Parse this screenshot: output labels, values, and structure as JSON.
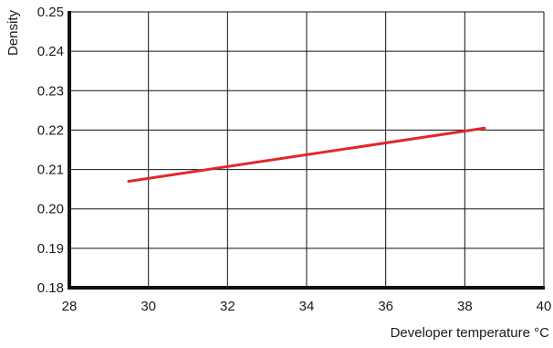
{
  "chart_data": {
    "type": "line",
    "title": "",
    "xlabel": "Developer temperature °C",
    "ylabel": "Density",
    "xlim": [
      28,
      40
    ],
    "ylim": [
      0.18,
      0.25
    ],
    "x_ticks": [
      28,
      30,
      32,
      34,
      36,
      38,
      40
    ],
    "x_tick_labels": [
      "28",
      "30",
      "32",
      "34",
      "36",
      "38",
      "40"
    ],
    "y_ticks": [
      0.18,
      0.19,
      0.2,
      0.21,
      0.22,
      0.23,
      0.24,
      0.25
    ],
    "y_tick_labels": [
      "0.18",
      "0.19",
      "0.20",
      "0.21",
      "0.22",
      "0.23",
      "0.24",
      "0.25"
    ],
    "grid": true,
    "legend": "none",
    "series": [
      {
        "color": "#e0282b",
        "points": [
          {
            "x": 29.5,
            "y": 0.207
          },
          {
            "x": 38.5,
            "y": 0.2205
          }
        ]
      }
    ]
  }
}
